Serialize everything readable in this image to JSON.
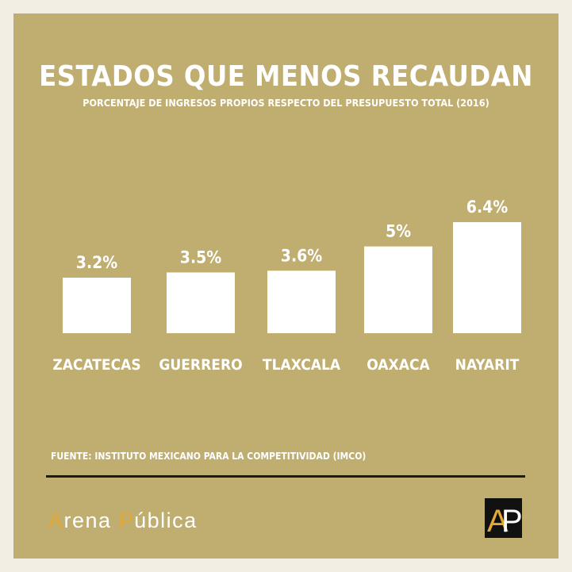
{
  "header": {
    "title": "ESTADOS QUE MENOS RECAUDAN",
    "subtitle": "PORCENTAJE DE INGRESOS PROPIOS RESPECTO DEL PRESUPUESTO TOTAL (2016)"
  },
  "chart_data": {
    "type": "bar",
    "categories": [
      "ZACATECAS",
      "GUERRERO",
      "TLAXCALA",
      "OAXACA",
      "NAYARIT"
    ],
    "values": [
      3.2,
      3.5,
      3.6,
      5,
      6.4
    ],
    "value_labels": [
      "3.2%",
      "3.5%",
      "3.6%",
      "5%",
      "6.4%"
    ],
    "title": "ESTADOS QUE MENOS RECAUDAN",
    "subtitle": "PORCENTAJE DE INGRESOS PROPIOS RESPECTO DEL PRESUPUESTO TOTAL (2016)",
    "xlabel": "",
    "ylabel": "",
    "ylim": [
      0,
      6.4
    ],
    "grid": false,
    "bar_color": "#ffffff"
  },
  "footer": {
    "source": "FUENTE: INSTITUTO MEXICANO PARA LA COMPETITIVIDAD (IMCO)",
    "brand_a": "A",
    "brand_rena": "rena ",
    "brand_p": "P",
    "brand_ublica": "ública",
    "logo_text": "AP"
  },
  "colors": {
    "background": "#c0ad70",
    "outer": "#f3eee3",
    "text": "#ffffff",
    "accent": "#e2a838",
    "rule": "#1a1a1a"
  }
}
